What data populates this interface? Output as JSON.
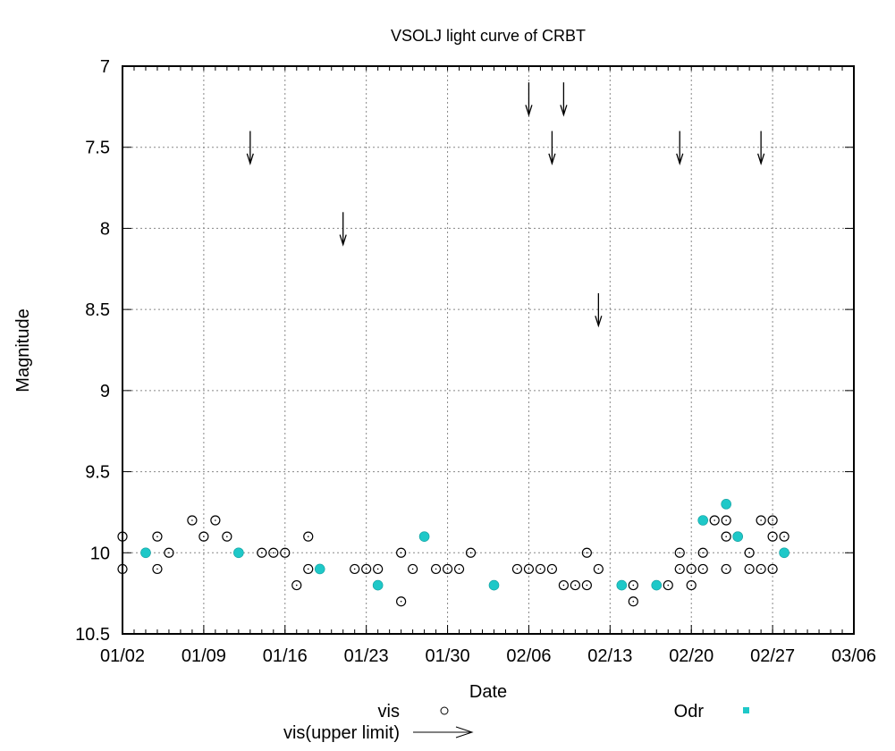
{
  "chart_data": {
    "type": "scatter",
    "title": "VSOLJ light curve of CRBT",
    "xlabel": "Date",
    "ylabel": "Magnitude",
    "x_unit": "days since 01/02",
    "xlim": [
      0,
      63
    ],
    "ylim": [
      10.5,
      7
    ],
    "y_inverted": true,
    "grid": true,
    "x_ticks": [
      {
        "day": 0,
        "label": "01/02"
      },
      {
        "day": 7,
        "label": "01/09"
      },
      {
        "day": 14,
        "label": "01/16"
      },
      {
        "day": 21,
        "label": "01/23"
      },
      {
        "day": 28,
        "label": "01/30"
      },
      {
        "day": 35,
        "label": "02/06"
      },
      {
        "day": 42,
        "label": "02/13"
      },
      {
        "day": 49,
        "label": "02/20"
      },
      {
        "day": 56,
        "label": "02/27"
      },
      {
        "day": 63,
        "label": "03/06"
      }
    ],
    "y_ticks": [
      {
        "value": 7,
        "label": "7"
      },
      {
        "value": 7.5,
        "label": "7.5"
      },
      {
        "value": 8,
        "label": "8"
      },
      {
        "value": 8.5,
        "label": "8.5"
      },
      {
        "value": 9,
        "label": "9"
      },
      {
        "value": 9.5,
        "label": "9.5"
      },
      {
        "value": 10,
        "label": "10"
      },
      {
        "value": 10.5,
        "label": "10.5"
      }
    ],
    "legend_position": "bottom",
    "series": [
      {
        "name": "vis",
        "marker": "open-circle",
        "color": "#000000",
        "points": [
          [
            0,
            9.9
          ],
          [
            0,
            10.1
          ],
          [
            3,
            9.9
          ],
          [
            3,
            10.1
          ],
          [
            4,
            10.0
          ],
          [
            6,
            9.8
          ],
          [
            7,
            9.9
          ],
          [
            8,
            9.8
          ],
          [
            9,
            9.9
          ],
          [
            12,
            10.0
          ],
          [
            13,
            10.0
          ],
          [
            14,
            10.0
          ],
          [
            15,
            10.2
          ],
          [
            16,
            9.9
          ],
          [
            16,
            10.1
          ],
          [
            20,
            10.1
          ],
          [
            21,
            10.1
          ],
          [
            22,
            10.1
          ],
          [
            24,
            10.0
          ],
          [
            24,
            10.3
          ],
          [
            25,
            10.1
          ],
          [
            27,
            10.1
          ],
          [
            28,
            10.1
          ],
          [
            29,
            10.1
          ],
          [
            30,
            10.0
          ],
          [
            34,
            10.1
          ],
          [
            35,
            10.1
          ],
          [
            36,
            10.1
          ],
          [
            37,
            10.1
          ],
          [
            38,
            10.2
          ],
          [
            39,
            10.2
          ],
          [
            40,
            10.0
          ],
          [
            40,
            10.2
          ],
          [
            41,
            10.1
          ],
          [
            44,
            10.2
          ],
          [
            44,
            10.3
          ],
          [
            47,
            10.2
          ],
          [
            48,
            10.0
          ],
          [
            48,
            10.1
          ],
          [
            49,
            10.1
          ],
          [
            49,
            10.2
          ],
          [
            50,
            10.0
          ],
          [
            50,
            10.1
          ],
          [
            51,
            9.8
          ],
          [
            52,
            9.8
          ],
          [
            52,
            9.9
          ],
          [
            52,
            10.1
          ],
          [
            53,
            9.9
          ],
          [
            54,
            10.0
          ],
          [
            54,
            10.1
          ],
          [
            55,
            9.8
          ],
          [
            55,
            10.1
          ],
          [
            56,
            9.8
          ],
          [
            56,
            9.9
          ],
          [
            56,
            10.1
          ],
          [
            57,
            9.9
          ]
        ]
      },
      {
        "name": "Odr",
        "marker": "filled-circle",
        "color": "#1ec8c8",
        "points": [
          [
            2,
            10.0
          ],
          [
            10,
            10.0
          ],
          [
            17,
            10.1
          ],
          [
            22,
            10.2
          ],
          [
            26,
            9.9
          ],
          [
            32,
            10.2
          ],
          [
            43,
            10.2
          ],
          [
            46,
            10.2
          ],
          [
            50,
            9.8
          ],
          [
            52,
            9.7
          ],
          [
            53,
            9.9
          ],
          [
            57,
            10.0
          ]
        ]
      },
      {
        "name": "vis(upper limit)",
        "marker": "down-arrow",
        "color": "#000000",
        "points": [
          [
            11,
            7.5
          ],
          [
            19,
            8.0
          ],
          [
            35,
            7.2
          ],
          [
            37,
            7.5
          ],
          [
            38,
            7.2
          ],
          [
            41,
            8.5
          ],
          [
            48,
            7.5
          ],
          [
            55,
            7.5
          ]
        ]
      }
    ]
  },
  "legend": {
    "vis_label": "vis",
    "upper_limit_label": "vis(upper limit)",
    "odr_label": "Odr"
  }
}
